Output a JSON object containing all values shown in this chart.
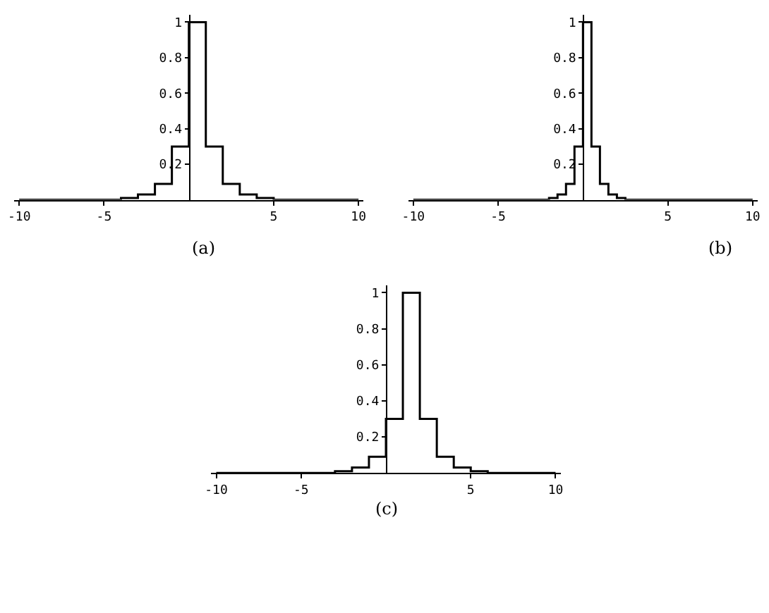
{
  "chart_data": [
    {
      "type": "step",
      "x": [
        -10,
        -5,
        -4,
        -3,
        -2,
        -1,
        0,
        1,
        2,
        3,
        4,
        5,
        10
      ],
      "values": [
        0,
        0,
        0.01,
        0.03,
        0.09,
        0.3,
        1,
        0.3,
        0.09,
        0.03,
        0.01,
        0,
        0
      ],
      "color": "#000000",
      "xlim": [
        -10.3,
        10.3
      ],
      "ylim": [
        0,
        1.04
      ],
      "xticks": [
        -10,
        -5,
        5,
        10
      ],
      "yticks": [
        0.2,
        0.4,
        0.6,
        0.8,
        1
      ],
      "annotations": [
        "(a)"
      ]
    },
    {
      "type": "step",
      "x": [
        -10,
        -2,
        -1.5,
        -1,
        -0.5,
        0,
        0.5,
        1,
        1.5,
        2,
        2.5,
        10
      ],
      "values": [
        0,
        0.01,
        0.03,
        0.09,
        0.3,
        1,
        0.3,
        0.09,
        0.03,
        0.01,
        0,
        0
      ],
      "color": "#000000",
      "xlim": [
        -10.3,
        10.3
      ],
      "ylim": [
        0,
        1.04
      ],
      "xticks": [
        -10,
        -5,
        5,
        10
      ],
      "yticks": [
        0.2,
        0.4,
        0.6,
        0.8,
        1
      ],
      "annotations": [
        "(b)"
      ]
    },
    {
      "type": "step",
      "x": [
        -10,
        -3,
        -2,
        -1,
        0,
        1,
        2,
        3,
        4,
        5,
        6,
        10
      ],
      "values": [
        0,
        0.01,
        0.03,
        0.09,
        0.3,
        1,
        0.3,
        0.09,
        0.03,
        0.01,
        0,
        0
      ],
      "color": "#000000",
      "xlim": [
        -10.3,
        10.3
      ],
      "ylim": [
        0,
        1.04
      ],
      "xticks": [
        -10,
        -5,
        5,
        10
      ],
      "yticks": [
        0.2,
        0.4,
        0.6,
        0.8,
        1
      ],
      "annotations": [
        "(c)"
      ]
    }
  ]
}
